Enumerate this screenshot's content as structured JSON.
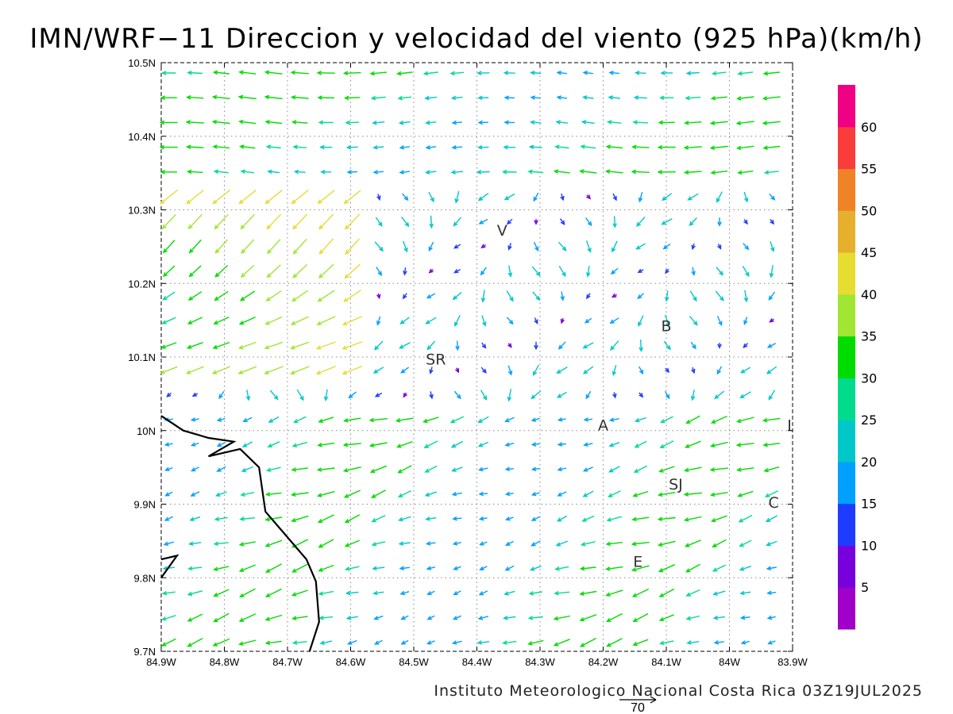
{
  "title": "IMN/WRF−11 Direccion y velocidad del viento (925 hPa)(km/h)",
  "footer": "Instituto Meteorologico Nacional Costa Rica 03Z19JUL2025",
  "reference_vector_label": "70",
  "map_extent": {
    "lon_min": -84.9,
    "lon_max": -83.9,
    "lat_min": 9.7,
    "lat_max": 10.5
  },
  "lon_ticks": [
    {
      "value": -84.9,
      "label": "84.9W"
    },
    {
      "value": -84.8,
      "label": "84.8W"
    },
    {
      "value": -84.7,
      "label": "84.7W"
    },
    {
      "value": -84.6,
      "label": "84.6W"
    },
    {
      "value": -84.5,
      "label": "84.5W"
    },
    {
      "value": -84.4,
      "label": "84.4W"
    },
    {
      "value": -84.3,
      "label": "84.3W"
    },
    {
      "value": -84.2,
      "label": "84.2W"
    },
    {
      "value": -84.1,
      "label": "84.1W"
    },
    {
      "value": -84.0,
      "label": "84W"
    },
    {
      "value": -83.9,
      "label": "83.9W"
    }
  ],
  "lat_ticks": [
    {
      "value": 10.5,
      "label": "10.5N"
    },
    {
      "value": 10.4,
      "label": "10.4N"
    },
    {
      "value": 10.3,
      "label": "10.3N"
    },
    {
      "value": 10.2,
      "label": "10.2N"
    },
    {
      "value": 10.1,
      "label": "10.1N"
    },
    {
      "value": 10.0,
      "label": "10N"
    },
    {
      "value": 9.9,
      "label": "9.9N"
    },
    {
      "value": 9.8,
      "label": "9.8N"
    },
    {
      "value": 9.7,
      "label": "9.7N"
    }
  ],
  "legend": {
    "bins": [
      {
        "color": "#a000c8",
        "label": ""
      },
      {
        "color": "#7800dc",
        "label": "5"
      },
      {
        "color": "#1e3cff",
        "label": "10"
      },
      {
        "color": "#00a0ff",
        "label": "15"
      },
      {
        "color": "#00c8c8",
        "label": "20"
      },
      {
        "color": "#00dc8c",
        "label": "25"
      },
      {
        "color": "#00dc00",
        "label": "30"
      },
      {
        "color": "#a0e632",
        "label": "35"
      },
      {
        "color": "#e6dc32",
        "label": "40"
      },
      {
        "color": "#e6af2d",
        "label": "45"
      },
      {
        "color": "#f08228",
        "label": "50"
      },
      {
        "color": "#fa3c3c",
        "label": "55"
      },
      {
        "color": "#f00082",
        "label": "60"
      }
    ]
  },
  "places": [
    {
      "label": "V",
      "lon": -84.36,
      "lat": 10.265
    },
    {
      "label": "SR",
      "lon": -84.465,
      "lat": 10.09
    },
    {
      "label": "B",
      "lon": -84.1,
      "lat": 10.135
    },
    {
      "label": "A",
      "lon": -84.2,
      "lat": 10.0
    },
    {
      "label": "SJ",
      "lon": -84.085,
      "lat": 9.92
    },
    {
      "label": "C",
      "lon": -83.93,
      "lat": 9.895
    },
    {
      "label": "E",
      "lon": -84.145,
      "lat": 9.815
    },
    {
      "label": "I",
      "lon": -83.905,
      "lat": 10.0
    }
  ],
  "coastline": [
    [
      -84.9,
      10.02
    ],
    [
      -84.865,
      10.0
    ],
    [
      -84.825,
      9.99
    ],
    [
      -84.785,
      9.985
    ],
    [
      -84.825,
      9.965
    ],
    [
      -84.775,
      9.975
    ],
    [
      -84.745,
      9.95
    ],
    [
      -84.735,
      9.89
    ],
    [
      -84.71,
      9.865
    ],
    [
      -84.67,
      9.825
    ],
    [
      -84.655,
      9.795
    ],
    [
      -84.65,
      9.74
    ],
    [
      -84.665,
      9.7
    ]
  ],
  "coastline_peninsula": [
    [
      -84.9,
      9.8
    ],
    [
      -84.875,
      9.83
    ],
    [
      -84.9,
      9.825
    ]
  ]
}
